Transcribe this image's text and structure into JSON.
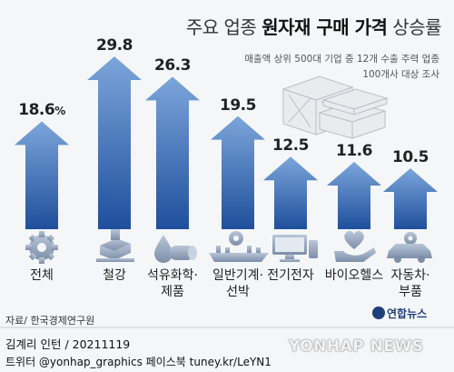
{
  "title_light_1": "주요 업종 ",
  "title_bold": "원자재 구매 가격",
  "title_light_2": " 상승률",
  "subtitle_line1": "매출액 상위 500대 기업 중 12개 수출 주력 업종",
  "subtitle_line2": "100개사 대상 조사",
  "source": "자료/ 한국경제연구원",
  "brand": "연합뉴스",
  "credit_line1": "김계리 인턴 / 20211119",
  "credit_line2": "트위터 @yonhap_graphics  페이스북 tuney.kr/LeYN1",
  "watermark": "YONHAP NEWS",
  "colors": {
    "arrow_top": "#7ca5da",
    "arrow_bottom": "#1f4f9c",
    "background": "#f5f6f7",
    "brand": "#1f3f7a"
  },
  "chart_data": {
    "type": "bar",
    "unit": "%",
    "categories": [
      "전체",
      "철강",
      "석유화학·제품",
      "일반기계·선박",
      "전기전자",
      "바이오헬스",
      "자동차·부품"
    ],
    "category_lines": [
      [
        "전체"
      ],
      [
        "철강"
      ],
      [
        "석유화학·",
        "제품"
      ],
      [
        "일반기계·",
        "선박"
      ],
      [
        "전기전자"
      ],
      [
        "바이오헬스"
      ],
      [
        "자동차·",
        "부품"
      ]
    ],
    "value_labels": [
      "18.6",
      "29.8",
      "26.3",
      "19.5",
      "12.5",
      "11.6",
      "10.5"
    ],
    "values": [
      18.6,
      29.8,
      26.3,
      19.5,
      12.5,
      11.6,
      10.5
    ],
    "icons": [
      "gear-icon",
      "steel-icon",
      "petrochemical-icon",
      "machinery-icon",
      "monitor-icon",
      "heart-hand-icon",
      "car-gear-icon"
    ]
  }
}
